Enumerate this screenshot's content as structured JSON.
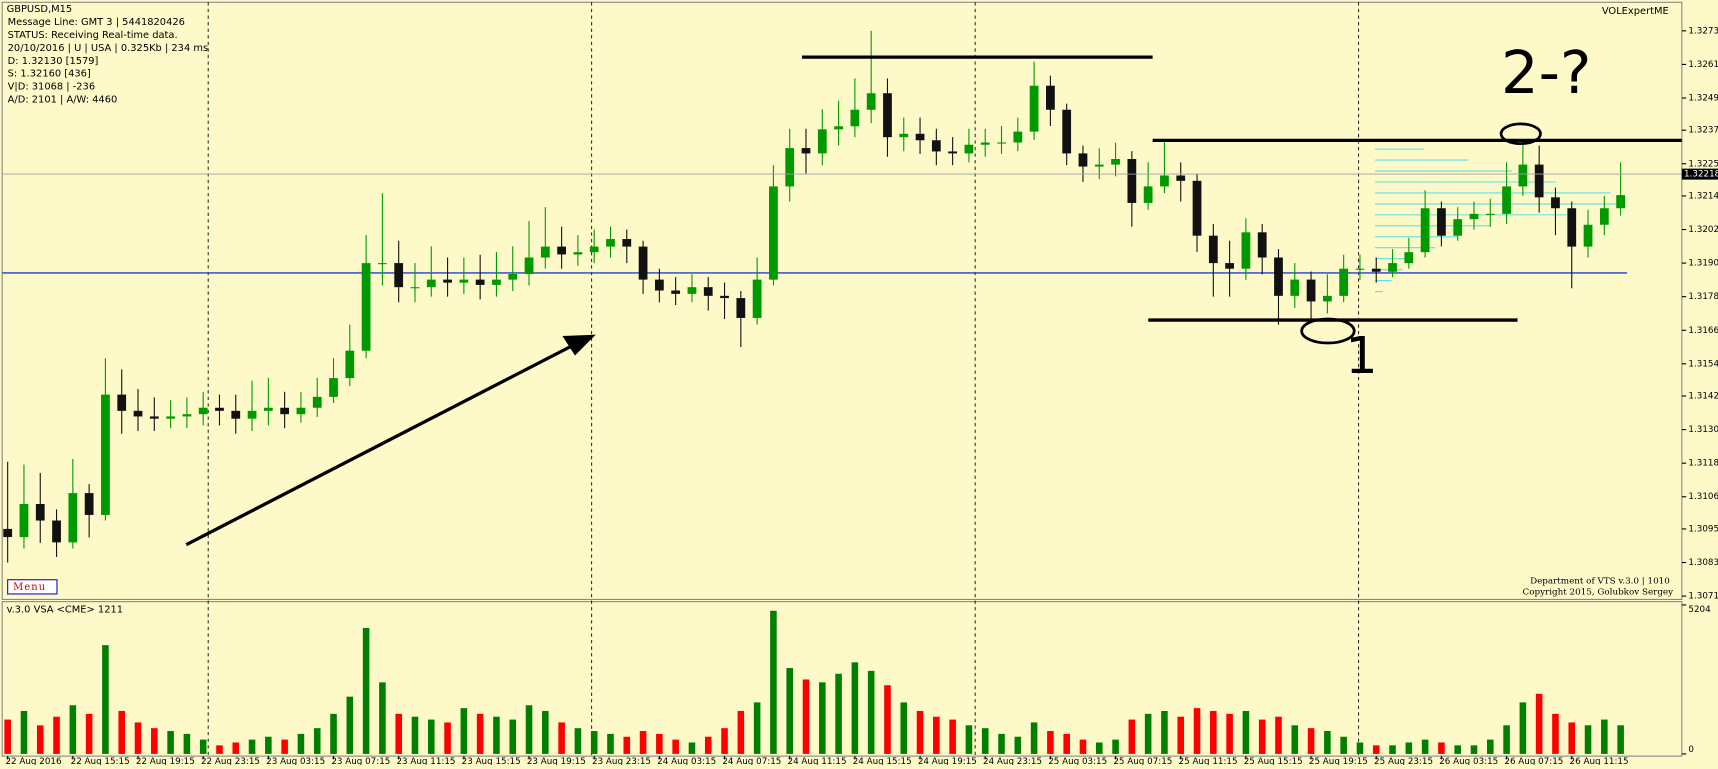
{
  "chart_data": {
    "type": "candlestick",
    "title": "GBPUSD,M15",
    "info": [
      "Message Line: GMT 3 | 5441820426",
      "STATUS:  Receiving Real-time data.",
      "20/10/2016 | U | USA | 0.325Kb | 234 ms",
      "D: 1.32130  [1579]",
      "S: 1.32160  [436]",
      "V|D: 31068 | -236",
      "A/D: 2101 | A/W: 4460"
    ],
    "indicator": "VOLExpertME",
    "menu": "Menu",
    "credits": [
      "Department of VTS  v.3.0 | 1010",
      "Copyright 2015, Golubkov Sergey"
    ],
    "volume_title": "v.3.0 VSA <CME> 1211",
    "annotations": [
      "2-?",
      "1"
    ],
    "categories": [
      "22 Aug 2016",
      null,
      null,
      null,
      "22 Aug 15:15",
      null,
      null,
      null,
      "22 Aug 19:15",
      null,
      null,
      null,
      "22 Aug 23:15",
      null,
      null,
      null,
      "23 Aug 03:15",
      null,
      null,
      null,
      "23 Aug 07:15",
      null,
      null,
      null,
      "23 Aug 11:15",
      null,
      null,
      null,
      "23 Aug 15:15",
      null,
      null,
      null,
      "23 Aug 19:15",
      null,
      null,
      null,
      "23 Aug 23:15",
      null,
      null,
      null,
      "24 Aug 03:15",
      null,
      null,
      null,
      "24 Aug 07:15",
      null,
      null,
      null,
      "24 Aug 11:15",
      null,
      null,
      null,
      "24 Aug 15:15",
      null,
      null,
      null,
      "24 Aug 19:15",
      null,
      null,
      null,
      "24 Aug 23:15",
      null,
      null,
      null,
      "25 Aug 03:15",
      null,
      null,
      null,
      "25 Aug 07:15",
      null,
      null,
      null,
      "25 Aug 11:15",
      null,
      null,
      null,
      "25 Aug 15:15",
      null,
      null,
      null,
      "25 Aug 19:15",
      null,
      null,
      null,
      "25 Aug 23:15",
      null,
      null,
      null,
      "26 Aug 03:15",
      null,
      null,
      null,
      "26 Aug 07:15",
      null,
      null,
      null,
      "26 Aug 11:15",
      null,
      null,
      null
    ],
    "open": [
      1.3095,
      1.30921,
      1.31039,
      1.3098,
      1.30902,
      1.31078,
      1.31,
      1.3143,
      1.31372,
      1.31352,
      1.31344,
      1.31352,
      1.3136,
      1.31383,
      1.31372,
      1.31344,
      1.31372,
      1.31383,
      1.3136,
      1.31383,
      1.31422,
      1.31489,
      1.31587,
      1.319,
      1.319,
      1.31814,
      1.31814,
      1.31841,
      1.3183,
      1.31841,
      1.31822,
      1.31841,
      1.31861,
      1.3192,
      1.31959,
      1.31931,
      1.31939,
      1.31959,
      1.31986,
      1.31959,
      1.31841,
      1.31802,
      1.3179,
      1.31814,
      1.31783,
      1.31775,
      1.31704,
      1.31841,
      1.32174,
      1.32311,
      1.32292,
      1.32378,
      1.32389,
      1.32448,
      1.32507,
      1.3235,
      1.32362,
      1.32339,
      1.32299,
      1.32292,
      1.32323,
      1.32331,
      1.32331,
      1.3237,
      1.32534,
      1.32448,
      1.32292,
      1.32245,
      1.32252,
      1.32272,
      1.32115,
      1.32174,
      1.32213,
      1.32194,
      1.31998,
      1.319,
      1.3188,
      1.3201,
      1.3192,
      1.31783,
      1.31841,
      1.31763,
      1.31783,
      1.3188,
      1.3188,
      1.31869,
      1.319,
      1.31939,
      1.32096,
      1.31998,
      1.32057,
      1.32076,
      1.32076,
      1.32174,
      1.32252,
      1.32135,
      1.32096,
      1.31959,
      1.32037,
      1.32096
    ],
    "high": [
      1.3119,
      1.3118,
      1.3115,
      1.3102,
      1.312,
      1.3111,
      1.3156,
      1.3152,
      1.3145,
      1.3142,
      1.3141,
      1.3142,
      1.3144,
      1.3143,
      1.3143,
      1.3148,
      1.3149,
      1.3144,
      1.3144,
      1.3149,
      1.3156,
      1.3168,
      1.32,
      1.3215,
      1.3198,
      1.319,
      1.3196,
      1.3192,
      1.3192,
      1.3193,
      1.3194,
      1.3196,
      1.3205,
      1.321,
      1.3203,
      1.32,
      1.3202,
      1.3203,
      1.3202,
      1.3198,
      1.3188,
      1.3185,
      1.3186,
      1.3185,
      1.3183,
      1.318,
      1.3192,
      1.3225,
      1.3238,
      1.3238,
      1.3245,
      1.3248,
      1.3256,
      1.3273,
      1.3256,
      1.3242,
      1.3242,
      1.3238,
      1.3235,
      1.3238,
      1.3238,
      1.3239,
      1.3242,
      1.3262,
      1.3257,
      1.3247,
      1.3232,
      1.3231,
      1.3233,
      1.323,
      1.3226,
      1.3234,
      1.3226,
      1.3222,
      1.3204,
      1.3198,
      1.3206,
      1.3204,
      1.3195,
      1.319,
      1.3187,
      1.3186,
      1.3193,
      1.3193,
      1.3192,
      1.3195,
      1.3199,
      1.3216,
      1.3212,
      1.321,
      1.3212,
      1.3213,
      1.3226,
      1.3234,
      1.3232,
      1.3217,
      1.3212,
      1.3209,
      1.3214,
      1.3226
    ],
    "low": [
      1.3083,
      1.3088,
      1.309,
      1.3085,
      1.3088,
      1.3092,
      1.3098,
      1.3129,
      1.313,
      1.313,
      1.3131,
      1.3131,
      1.3132,
      1.3132,
      1.3129,
      1.313,
      1.3132,
      1.3131,
      1.3133,
      1.3135,
      1.314,
      1.3146,
      1.3156,
      1.3182,
      1.3176,
      1.3176,
      1.3178,
      1.3178,
      1.3179,
      1.3177,
      1.3178,
      1.318,
      1.3182,
      1.3188,
      1.3188,
      1.3189,
      1.319,
      1.3192,
      1.319,
      1.3179,
      1.3176,
      1.3175,
      1.3176,
      1.3173,
      1.317,
      1.316,
      1.3168,
      1.3182,
      1.3212,
      1.3222,
      1.3225,
      1.3232,
      1.3235,
      1.324,
      1.3228,
      1.323,
      1.3229,
      1.3225,
      1.3225,
      1.3226,
      1.3228,
      1.3229,
      1.323,
      1.3234,
      1.3239,
      1.3225,
      1.3219,
      1.322,
      1.3221,
      1.3203,
      1.3209,
      1.3215,
      1.3212,
      1.3194,
      1.3178,
      1.3178,
      1.3184,
      1.3186,
      1.3168,
      1.3174,
      1.3169,
      1.3172,
      1.3176,
      1.3184,
      1.3183,
      1.3185,
      1.3188,
      1.3192,
      1.3196,
      1.3198,
      1.3202,
      1.3203,
      1.3204,
      1.3214,
      1.3208,
      1.32,
      1.3181,
      1.3192,
      1.32,
      1.3207
    ],
    "close": [
      1.30921,
      1.31039,
      1.3098,
      1.30902,
      1.31078,
      1.31,
      1.3143,
      1.31372,
      1.31352,
      1.31344,
      1.31352,
      1.3136,
      1.31383,
      1.31372,
      1.31344,
      1.31372,
      1.31383,
      1.3136,
      1.31383,
      1.31422,
      1.31489,
      1.31587,
      1.319,
      1.319,
      1.31814,
      1.31814,
      1.31841,
      1.3183,
      1.31841,
      1.31822,
      1.31841,
      1.31861,
      1.3192,
      1.31959,
      1.31931,
      1.31939,
      1.31959,
      1.31986,
      1.31959,
      1.31841,
      1.31802,
      1.3179,
      1.31814,
      1.31783,
      1.31775,
      1.31704,
      1.31841,
      1.32174,
      1.32311,
      1.32292,
      1.32378,
      1.32389,
      1.32448,
      1.32507,
      1.3235,
      1.32362,
      1.32339,
      1.32299,
      1.32292,
      1.32323,
      1.32331,
      1.32331,
      1.3237,
      1.32534,
      1.32448,
      1.32292,
      1.32245,
      1.32252,
      1.32272,
      1.32115,
      1.32174,
      1.32213,
      1.32194,
      1.31998,
      1.319,
      1.3188,
      1.3201,
      1.3192,
      1.31783,
      1.31841,
      1.31763,
      1.31783,
      1.3188,
      1.3188,
      1.31869,
      1.319,
      1.31939,
      1.32096,
      1.31998,
      1.32057,
      1.32076,
      1.32076,
      1.32174,
      1.32252,
      1.32135,
      1.32096,
      1.31959,
      1.32037,
      1.32096,
      1.32143
    ],
    "volume": [
      1200,
      1500,
      1000,
      1300,
      1700,
      1400,
      3800,
      1500,
      1100,
      900,
      800,
      700,
      500,
      300,
      400,
      500,
      600,
      500,
      700,
      900,
      1400,
      2000,
      4400,
      2500,
      1400,
      1300,
      1200,
      1100,
      1600,
      1400,
      1300,
      1200,
      1700,
      1500,
      1100,
      900,
      800,
      700,
      600,
      800,
      700,
      500,
      400,
      600,
      900,
      1500,
      1800,
      5000,
      3000,
      2600,
      2500,
      2800,
      3200,
      2900,
      2400,
      1800,
      1500,
      1300,
      1200,
      1000,
      900,
      700,
      600,
      1100,
      800,
      700,
      500,
      400,
      500,
      1200,
      1400,
      1500,
      1300,
      1600,
      1500,
      1400,
      1500,
      1200,
      1300,
      1000,
      900,
      800,
      600,
      400,
      300,
      300,
      400,
      500,
      400,
      300,
      300,
      500,
      1000,
      1800,
      2100,
      1400,
      1100,
      1000,
      1200,
      1000
    ],
    "ylim": [
      1.30698,
      1.32832
    ],
    "yticks": [
      {
        "value": 1.3273,
        "label": "1.32730"
      },
      {
        "value": 1.3261,
        "label": "1.32610"
      },
      {
        "value": 1.3249,
        "label": "1.32490"
      },
      1.32375,
      1.32255,
      {
        "value": 1.3214,
        "label": "1.32140"
      },
      {
        "value": 1.3202,
        "label": "1.32020"
      },
      {
        "value": 1.319,
        "label": "1.31900"
      },
      {
        "value": 1.3178,
        "label": "1.31780"
      },
      {
        "value": 1.3166,
        "label": "1.31660"
      },
      {
        "value": 1.3154,
        "label": "1.31540"
      },
      1.31425,
      1.31305,
      1.31185,
      1.31065,
      {
        "value": 1.3095,
        "label": "1.30950"
      },
      {
        "value": 1.3083,
        "label": "1.30830"
      },
      {
        "value": 1.3071,
        "label": "1.30710"
      }
    ],
    "current_price": 1.32218,
    "volume_ylim": [
      0,
      5204
    ],
    "volume_yticks": [
      0,
      5204
    ],
    "up_color": "#009900",
    "down_color": "#111111",
    "volume_up_color": "#008000",
    "volume_down_color": "#ff0000",
    "background": "#fdf9c9"
  }
}
